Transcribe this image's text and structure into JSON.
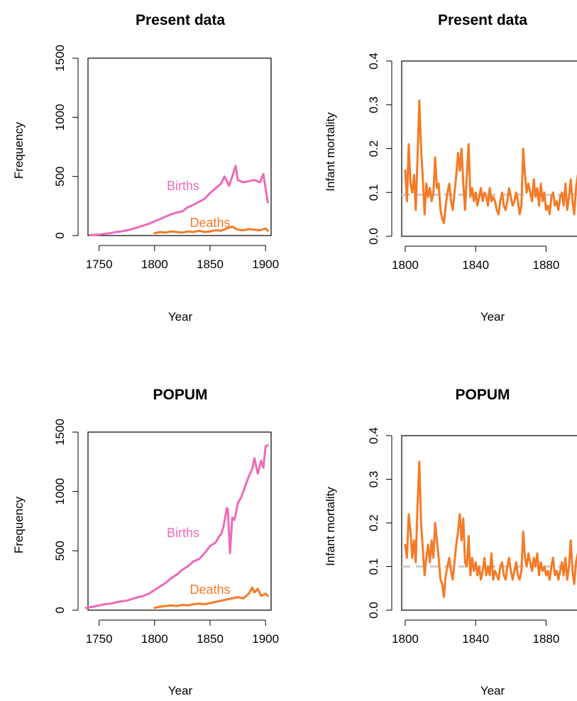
{
  "colors": {
    "births": "#ee6ab8",
    "deaths": "#f57a26",
    "mortality": "#f57a26",
    "reference": "#cccccc",
    "axis": "#000000"
  },
  "chart_data": [
    {
      "id": "present-frequency",
      "type": "line",
      "title": "Present data",
      "xlabel": "Year",
      "ylabel": "Frequency",
      "xlim": [
        1740,
        1905
      ],
      "ylim": [
        0,
        1500
      ],
      "xticks": [
        1750,
        1800,
        1850,
        1900
      ],
      "yticks": [
        0,
        500,
        1000,
        1500
      ],
      "series": [
        {
          "name": "Births",
          "color": "#ee6ab8",
          "x": [
            1742,
            1750,
            1755,
            1760,
            1765,
            1770,
            1775,
            1780,
            1785,
            1790,
            1795,
            1800,
            1805,
            1810,
            1815,
            1820,
            1825,
            1830,
            1835,
            1840,
            1845,
            1850,
            1855,
            1860,
            1863,
            1865,
            1867,
            1870,
            1873,
            1875,
            1880,
            1885,
            1890,
            1895,
            1898,
            1900,
            1902
          ],
          "values": [
            5,
            8,
            15,
            20,
            30,
            35,
            45,
            55,
            70,
            85,
            100,
            120,
            140,
            160,
            180,
            195,
            205,
            240,
            260,
            285,
            310,
            360,
            400,
            440,
            500,
            460,
            420,
            500,
            590,
            470,
            450,
            460,
            470,
            450,
            520,
            400,
            280
          ]
        },
        {
          "name": "Deaths",
          "color": "#f57a26",
          "x": [
            1800,
            1805,
            1810,
            1815,
            1820,
            1825,
            1830,
            1835,
            1840,
            1845,
            1850,
            1855,
            1860,
            1865,
            1870,
            1875,
            1880,
            1885,
            1890,
            1895,
            1900,
            1902
          ],
          "values": [
            20,
            30,
            25,
            35,
            30,
            25,
            35,
            30,
            40,
            30,
            35,
            45,
            40,
            60,
            75,
            50,
            45,
            55,
            50,
            45,
            60,
            40
          ]
        }
      ]
    },
    {
      "id": "present-mortality",
      "type": "line",
      "title": "Present data",
      "xlabel": "Year",
      "ylabel": "Infant mortality",
      "xlim": [
        1798,
        1902
      ],
      "ylim": [
        0,
        0.4
      ],
      "xticks": [
        1800,
        1840,
        1880
      ],
      "yticks": [
        0.0,
        0.1,
        0.2,
        0.3,
        0.4
      ],
      "reference": 0.095,
      "series": [
        {
          "name": "",
          "color": "#f57a26",
          "x": [
            1800,
            1801,
            1802,
            1803,
            1804,
            1805,
            1806,
            1807,
            1808,
            1809,
            1810,
            1811,
            1812,
            1813,
            1814,
            1815,
            1816,
            1817,
            1818,
            1819,
            1820,
            1821,
            1822,
            1823,
            1824,
            1825,
            1826,
            1827,
            1828,
            1829,
            1830,
            1831,
            1832,
            1833,
            1834,
            1835,
            1836,
            1837,
            1838,
            1839,
            1840,
            1841,
            1842,
            1843,
            1844,
            1845,
            1846,
            1847,
            1848,
            1849,
            1850,
            1851,
            1852,
            1853,
            1854,
            1855,
            1856,
            1857,
            1858,
            1859,
            1860,
            1861,
            1862,
            1863,
            1864,
            1865,
            1866,
            1867,
            1868,
            1869,
            1870,
            1871,
            1872,
            1873,
            1874,
            1875,
            1876,
            1877,
            1878,
            1879,
            1880,
            1881,
            1882,
            1883,
            1884,
            1885,
            1886,
            1887,
            1888,
            1889,
            1890,
            1891,
            1892,
            1893,
            1894,
            1895,
            1896,
            1897,
            1898,
            1899,
            1900,
            1901,
            1902
          ],
          "values": [
            0.15,
            0.08,
            0.21,
            0.12,
            0.1,
            0.14,
            0.06,
            0.18,
            0.31,
            0.2,
            0.13,
            0.05,
            0.12,
            0.09,
            0.11,
            0.08,
            0.1,
            0.18,
            0.11,
            0.12,
            0.06,
            0.04,
            0.03,
            0.07,
            0.1,
            0.12,
            0.08,
            0.06,
            0.1,
            0.14,
            0.19,
            0.15,
            0.2,
            0.12,
            0.06,
            0.14,
            0.21,
            0.09,
            0.11,
            0.08,
            0.1,
            0.07,
            0.09,
            0.11,
            0.08,
            0.1,
            0.09,
            0.07,
            0.11,
            0.08,
            0.09,
            0.08,
            0.06,
            0.05,
            0.08,
            0.1,
            0.07,
            0.06,
            0.08,
            0.11,
            0.09,
            0.07,
            0.08,
            0.1,
            0.08,
            0.05,
            0.07,
            0.2,
            0.14,
            0.1,
            0.12,
            0.1,
            0.08,
            0.13,
            0.09,
            0.11,
            0.07,
            0.12,
            0.08,
            0.1,
            0.06,
            0.07,
            0.05,
            0.09,
            0.1,
            0.07,
            0.08,
            0.06,
            0.09,
            0.1,
            0.07,
            0.12,
            0.06,
            0.09,
            0.13,
            0.08,
            0.05,
            0.11,
            0.14,
            0.04,
            0.09,
            0.07,
            0.14
          ]
        }
      ]
    },
    {
      "id": "popum-frequency",
      "type": "line",
      "title": "POPUM",
      "xlabel": "Year",
      "ylabel": "Frequency",
      "xlim": [
        1740,
        1905
      ],
      "ylim": [
        0,
        1500
      ],
      "xticks": [
        1750,
        1800,
        1850,
        1900
      ],
      "yticks": [
        0,
        500,
        1000,
        1500
      ],
      "series": [
        {
          "name": "Births",
          "color": "#ee6ab8",
          "x": [
            1738,
            1745,
            1750,
            1755,
            1760,
            1765,
            1770,
            1775,
            1780,
            1785,
            1790,
            1795,
            1800,
            1805,
            1810,
            1815,
            1820,
            1825,
            1830,
            1835,
            1840,
            1845,
            1850,
            1855,
            1858,
            1860,
            1862,
            1865,
            1866,
            1868,
            1870,
            1872,
            1875,
            1878,
            1880,
            1885,
            1888,
            1890,
            1893,
            1896,
            1898,
            1900,
            1902
          ],
          "values": [
            20,
            30,
            40,
            50,
            55,
            65,
            75,
            80,
            95,
            110,
            120,
            140,
            170,
            200,
            230,
            270,
            300,
            340,
            370,
            410,
            430,
            480,
            540,
            570,
            620,
            640,
            700,
            860,
            850,
            480,
            780,
            760,
            900,
            950,
            1000,
            1130,
            1190,
            1280,
            1150,
            1260,
            1200,
            1380,
            1390
          ]
        },
        {
          "name": "Deaths",
          "color": "#f57a26",
          "x": [
            1800,
            1805,
            1810,
            1815,
            1820,
            1825,
            1830,
            1835,
            1840,
            1845,
            1850,
            1855,
            1860,
            1865,
            1870,
            1875,
            1880,
            1885,
            1888,
            1890,
            1893,
            1896,
            1900,
            1902
          ],
          "values": [
            20,
            30,
            35,
            40,
            35,
            45,
            40,
            50,
            55,
            50,
            60,
            70,
            80,
            90,
            100,
            110,
            100,
            140,
            190,
            150,
            180,
            120,
            140,
            120
          ]
        }
      ]
    },
    {
      "id": "popum-mortality",
      "type": "line",
      "title": "POPUM",
      "xlabel": "Year",
      "ylabel": "Infant mortality",
      "xlim": [
        1798,
        1902
      ],
      "ylim": [
        0,
        0.4
      ],
      "xticks": [
        1800,
        1840,
        1880
      ],
      "yticks": [
        0.0,
        0.1,
        0.2,
        0.3,
        0.4
      ],
      "reference": 0.1,
      "series": [
        {
          "name": "",
          "color": "#f57a26",
          "x": [
            1800,
            1801,
            1802,
            1803,
            1804,
            1805,
            1806,
            1807,
            1808,
            1809,
            1810,
            1811,
            1812,
            1813,
            1814,
            1815,
            1816,
            1817,
            1818,
            1819,
            1820,
            1821,
            1822,
            1823,
            1824,
            1825,
            1826,
            1827,
            1828,
            1829,
            1830,
            1831,
            1832,
            1833,
            1834,
            1835,
            1836,
            1837,
            1838,
            1839,
            1840,
            1841,
            1842,
            1843,
            1844,
            1845,
            1846,
            1847,
            1848,
            1849,
            1850,
            1851,
            1852,
            1853,
            1854,
            1855,
            1856,
            1857,
            1858,
            1859,
            1860,
            1861,
            1862,
            1863,
            1864,
            1865,
            1866,
            1867,
            1868,
            1869,
            1870,
            1871,
            1872,
            1873,
            1874,
            1875,
            1876,
            1877,
            1878,
            1879,
            1880,
            1881,
            1882,
            1883,
            1884,
            1885,
            1886,
            1887,
            1888,
            1889,
            1890,
            1891,
            1892,
            1893,
            1894,
            1895,
            1896,
            1897,
            1898,
            1899,
            1900,
            1901,
            1902
          ],
          "values": [
            0.15,
            0.12,
            0.22,
            0.18,
            0.12,
            0.16,
            0.11,
            0.24,
            0.34,
            0.2,
            0.14,
            0.08,
            0.12,
            0.15,
            0.11,
            0.16,
            0.12,
            0.2,
            0.16,
            0.12,
            0.07,
            0.06,
            0.03,
            0.08,
            0.1,
            0.12,
            0.09,
            0.07,
            0.11,
            0.15,
            0.18,
            0.22,
            0.16,
            0.21,
            0.11,
            0.1,
            0.17,
            0.08,
            0.12,
            0.09,
            0.11,
            0.08,
            0.1,
            0.07,
            0.09,
            0.12,
            0.08,
            0.1,
            0.08,
            0.13,
            0.07,
            0.09,
            0.08,
            0.07,
            0.1,
            0.11,
            0.08,
            0.07,
            0.1,
            0.12,
            0.09,
            0.07,
            0.09,
            0.11,
            0.08,
            0.07,
            0.09,
            0.18,
            0.12,
            0.1,
            0.13,
            0.11,
            0.09,
            0.12,
            0.1,
            0.13,
            0.08,
            0.11,
            0.09,
            0.1,
            0.08,
            0.09,
            0.07,
            0.1,
            0.12,
            0.08,
            0.09,
            0.07,
            0.09,
            0.11,
            0.08,
            0.12,
            0.07,
            0.1,
            0.16,
            0.09,
            0.06,
            0.11,
            0.13,
            0.08,
            0.1,
            0.09,
            0.14
          ]
        }
      ]
    }
  ]
}
